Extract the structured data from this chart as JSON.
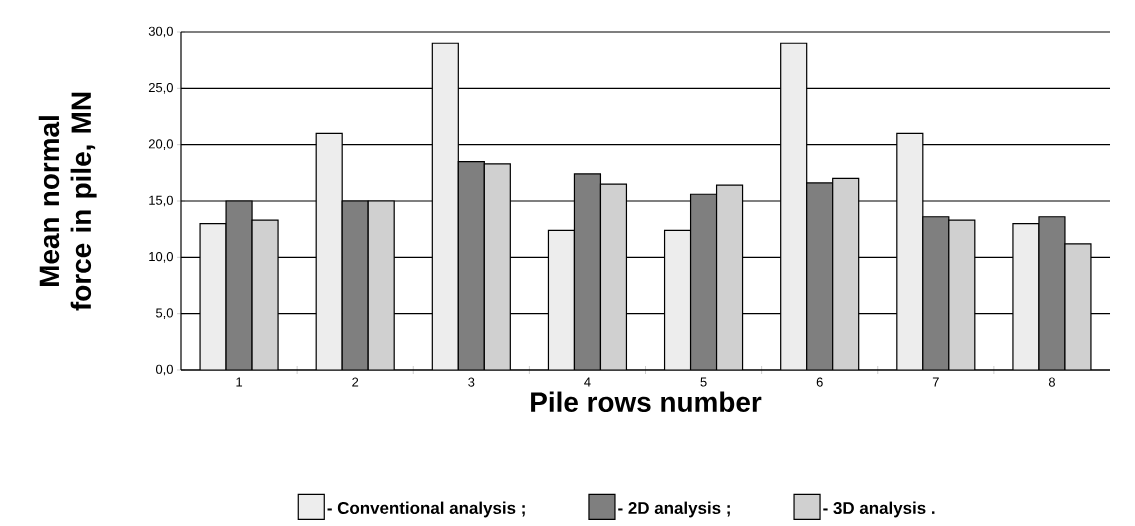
{
  "chart_data": {
    "type": "bar",
    "xlabel": "Pile rows number",
    "ylabel": "Mean normal force in pile, MN",
    "categories": [
      "1",
      "2",
      "3",
      "4",
      "5",
      "6",
      "7",
      "8"
    ],
    "series": [
      {
        "name": "- Conventional analysis ;",
        "color": "#ededed",
        "values": [
          13.0,
          21.0,
          29.0,
          12.4,
          12.4,
          29.0,
          21.0,
          13.0
        ]
      },
      {
        "name": "- 2D analysis ;",
        "color": "#7f7f7f",
        "values": [
          15.0,
          15.0,
          18.5,
          17.4,
          15.6,
          16.6,
          13.6,
          13.6
        ]
      },
      {
        "name": "- 3D analysis .",
        "color": "#d0d0d0",
        "values": [
          13.3,
          15.0,
          18.3,
          16.5,
          16.4,
          17.0,
          13.3,
          11.2
        ]
      }
    ],
    "ylim": [
      0,
      30
    ],
    "yticks": [
      {
        "value": 0,
        "label": "0,0"
      },
      {
        "value": 5,
        "label": "5,0"
      },
      {
        "value": 10,
        "label": "10,0"
      },
      {
        "value": 15,
        "label": "15,0"
      },
      {
        "value": 20,
        "label": "20,0"
      },
      {
        "value": 25,
        "label": "25,0"
      },
      {
        "value": 30,
        "label": "30,0"
      }
    ],
    "grid": "y",
    "legend": "bottom"
  }
}
